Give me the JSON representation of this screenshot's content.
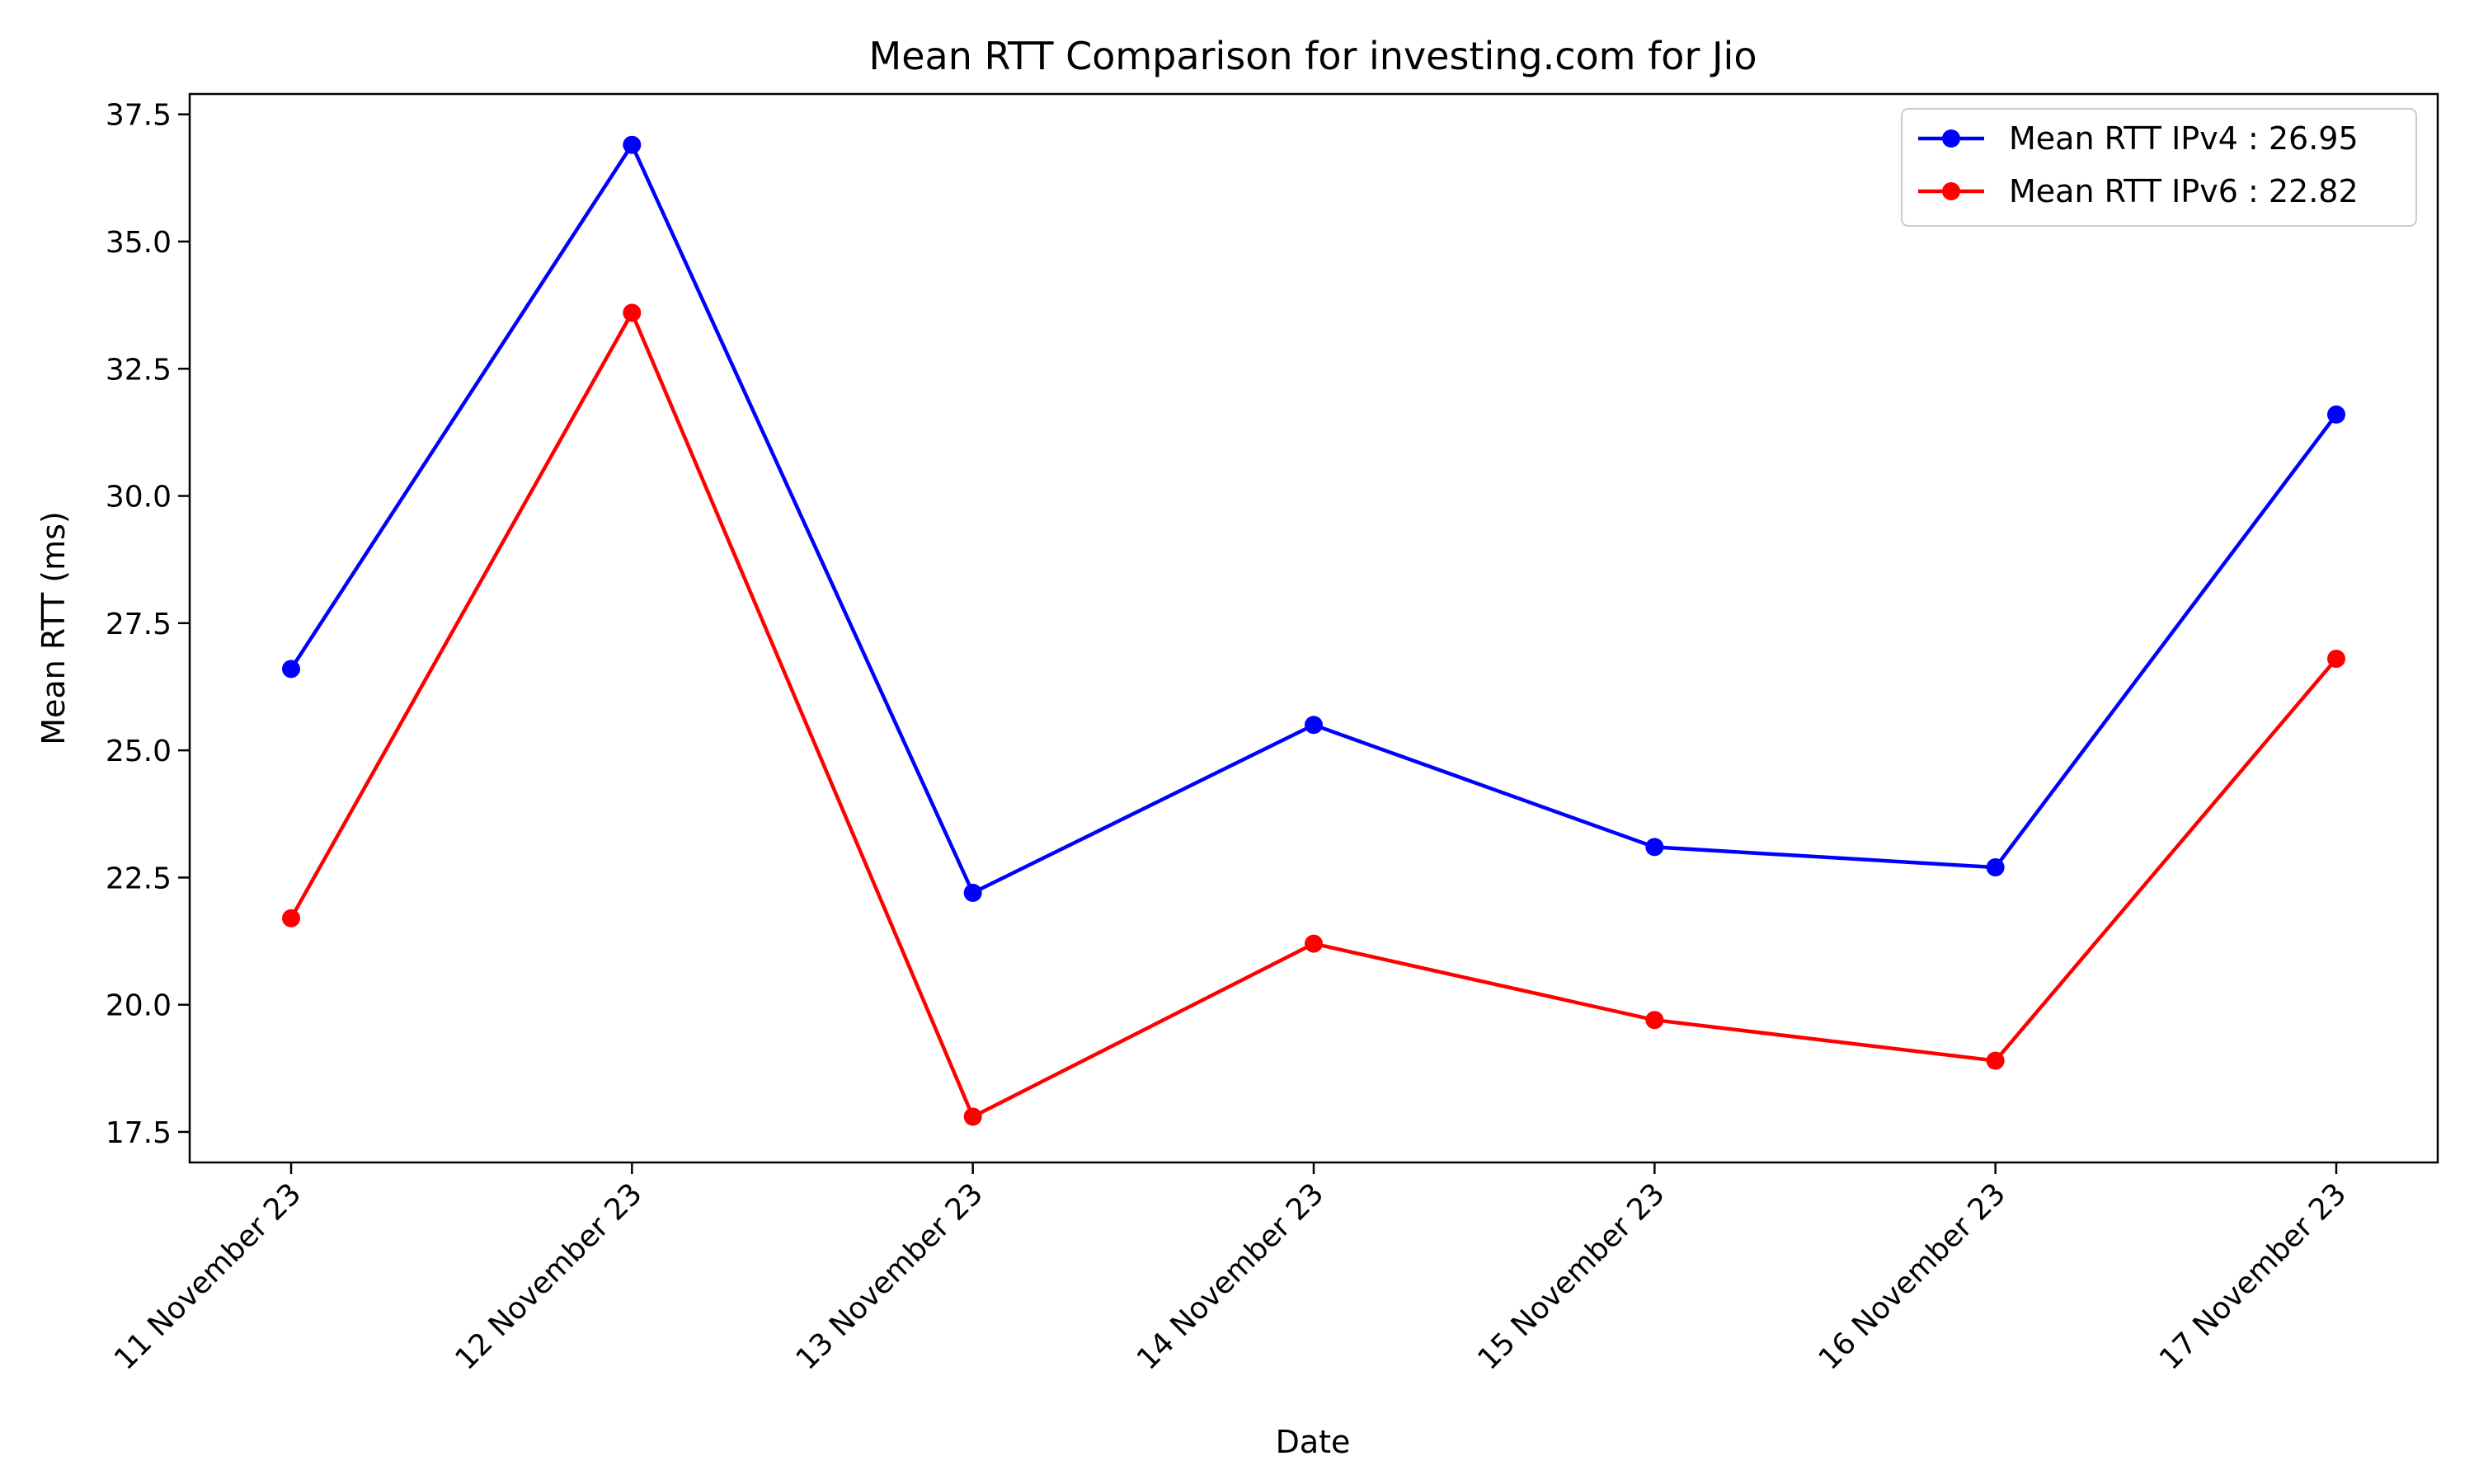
{
  "chart_data": {
    "type": "line",
    "title": "Mean RTT Comparison for investing.com for Jio",
    "xlabel": "Date",
    "ylabel": "Mean RTT (ms)",
    "categories": [
      "11 November 23",
      "12 November 23",
      "13 November 23",
      "14 November 23",
      "15 November 23",
      "16 November 23",
      "17 November 23"
    ],
    "ylim": [
      16.9,
      37.9
    ],
    "yticks": [
      17.5,
      20.0,
      22.5,
      25.0,
      27.5,
      30.0,
      32.5,
      35.0,
      37.5
    ],
    "ytick_labels": [
      "17.5",
      "20.0",
      "22.5",
      "25.0",
      "27.5",
      "30.0",
      "32.5",
      "35.0",
      "37.5"
    ],
    "grid": false,
    "legend_position": "top-right",
    "series": [
      {
        "name": "Mean RTT IPv4 : 26.95",
        "color": "#0000ff",
        "marker": "circle",
        "values": [
          26.6,
          36.9,
          22.2,
          25.5,
          23.1,
          22.7,
          31.6
        ]
      },
      {
        "name": "Mean RTT IPv6 : 22.82",
        "color": "#ff0000",
        "marker": "circle",
        "values": [
          21.7,
          33.6,
          17.8,
          21.2,
          19.7,
          18.9,
          26.8
        ]
      }
    ]
  }
}
